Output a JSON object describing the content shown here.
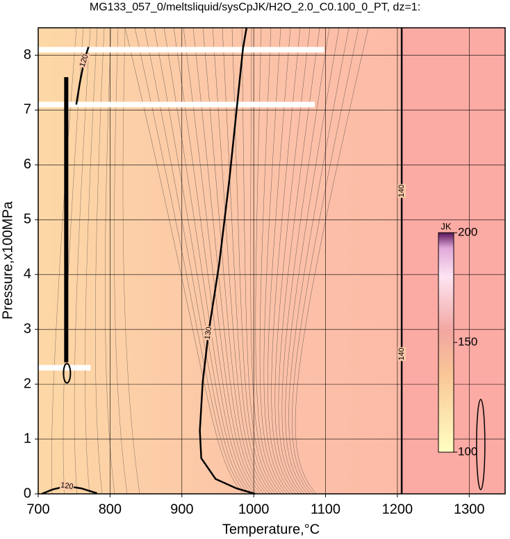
{
  "chart_data": {
    "type": "contour",
    "title": "MG133_057_0/meltsliquid/sysCpJK/H2O_2.0_C0.100_0_PT, dz=1:",
    "xlabel": "Temperature,°C",
    "ylabel": "Pressure,x100MPa",
    "xlim": [
      700,
      1350
    ],
    "ylim": [
      0,
      8.5
    ],
    "xticks": [
      700,
      800,
      900,
      1000,
      1100,
      1200,
      1300
    ],
    "yticks": [
      0,
      1,
      2,
      3,
      4,
      5,
      6,
      7,
      8
    ],
    "grid": true,
    "contours": [
      {
        "level": 130,
        "x": [
          1002,
          976,
          947,
          927,
          925,
          929,
          937,
          952,
          966,
          976,
          985,
          990
        ],
        "y": [
          0,
          0.1,
          0.27,
          0.65,
          1.15,
          2.04,
          2.93,
          4.2,
          5.72,
          6.98,
          8.12,
          8.5
        ]
      },
      {
        "level": 140,
        "x": [
          1206,
          1206
        ],
        "y": [
          0,
          8.5
        ]
      },
      {
        "level": 120,
        "x": [
          705,
          720,
          740,
          760,
          782
        ],
        "y": [
          0,
          0.08,
          0.14,
          0.1,
          0.01
        ]
      },
      {
        "level": 120,
        "x": [
          753,
          758,
          764,
          770
        ],
        "y": [
          7.1,
          7.5,
          7.9,
          8.15
        ]
      }
    ],
    "colorbar": {
      "label": "JK",
      "lim": [
        100,
        200
      ],
      "ticks": [
        100,
        150,
        200
      ]
    }
  }
}
